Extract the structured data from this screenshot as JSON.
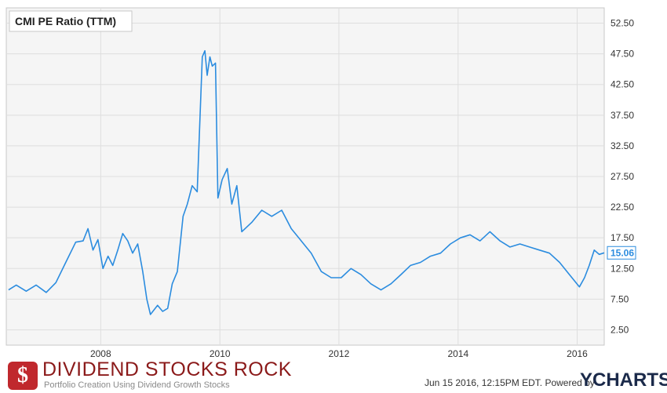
{
  "chart_data": {
    "type": "line",
    "title": "CMI PE Ratio (TTM)",
    "x_ticks": [
      "2008",
      "2010",
      "2012",
      "2014",
      "2016"
    ],
    "y_ticks": [
      "52.50",
      "47.50",
      "42.50",
      "37.50",
      "32.50",
      "27.50",
      "22.50",
      "17.50",
      "12.50",
      "7.50",
      "2.50"
    ],
    "ylim": [
      0,
      55
    ],
    "xlim": [
      "2006-06",
      "2016-06"
    ],
    "grid": true,
    "last_value_label": "15.06",
    "series": [
      {
        "color": "#2b8cdf",
        "points": [
          [
            "2006-06-15",
            9.0
          ],
          [
            "2006-08-01",
            9.8
          ],
          [
            "2006-10-01",
            8.8
          ],
          [
            "2006-12-01",
            9.8
          ],
          [
            "2007-02-01",
            8.6
          ],
          [
            "2007-04-01",
            10.2
          ],
          [
            "2007-06-01",
            13.5
          ],
          [
            "2007-08-01",
            16.8
          ],
          [
            "2007-09-15",
            17.0
          ],
          [
            "2007-10-15",
            19.0
          ],
          [
            "2007-11-15",
            15.5
          ],
          [
            "2007-12-15",
            17.2
          ],
          [
            "2008-01-15",
            12.5
          ],
          [
            "2008-02-15",
            14.5
          ],
          [
            "2008-03-15",
            13.0
          ],
          [
            "2008-04-15",
            15.5
          ],
          [
            "2008-05-15",
            18.2
          ],
          [
            "2008-06-15",
            17.0
          ],
          [
            "2008-07-15",
            15.0
          ],
          [
            "2008-08-15",
            16.5
          ],
          [
            "2008-09-15",
            12.0
          ],
          [
            "2008-10-10",
            7.5
          ],
          [
            "2008-11-01",
            5.0
          ],
          [
            "2008-12-15",
            6.5
          ],
          [
            "2009-01-15",
            5.5
          ],
          [
            "2009-02-15",
            6.0
          ],
          [
            "2009-03-15",
            10.0
          ],
          [
            "2009-04-15",
            12.0
          ],
          [
            "2009-05-20",
            21.0
          ],
          [
            "2009-06-15",
            23.0
          ],
          [
            "2009-07-15",
            26.0
          ],
          [
            "2009-08-15",
            25.0
          ],
          [
            "2009-09-15",
            47.0
          ],
          [
            "2009-10-01",
            48.0
          ],
          [
            "2009-10-15",
            44.0
          ],
          [
            "2009-11-01",
            47.0
          ],
          [
            "2009-11-15",
            45.5
          ],
          [
            "2009-12-05",
            46.0
          ],
          [
            "2009-12-20",
            24.0
          ],
          [
            "2010-01-15",
            27.0
          ],
          [
            "2010-02-15",
            28.8
          ],
          [
            "2010-03-15",
            23.0
          ],
          [
            "2010-04-15",
            26.0
          ],
          [
            "2010-05-15",
            18.5
          ],
          [
            "2010-07-15",
            20.0
          ],
          [
            "2010-09-15",
            22.0
          ],
          [
            "2010-11-15",
            21.0
          ],
          [
            "2011-01-15",
            22.0
          ],
          [
            "2011-03-15",
            19.0
          ],
          [
            "2011-05-15",
            17.0
          ],
          [
            "2011-07-15",
            15.0
          ],
          [
            "2011-09-15",
            12.0
          ],
          [
            "2011-11-15",
            11.0
          ],
          [
            "2012-01-15",
            11.0
          ],
          [
            "2012-03-15",
            12.5
          ],
          [
            "2012-05-15",
            11.5
          ],
          [
            "2012-07-15",
            10.0
          ],
          [
            "2012-09-15",
            9.0
          ],
          [
            "2012-11-15",
            10.0
          ],
          [
            "2013-01-15",
            11.5
          ],
          [
            "2013-03-15",
            13.0
          ],
          [
            "2013-05-15",
            13.5
          ],
          [
            "2013-07-15",
            14.5
          ],
          [
            "2013-09-15",
            15.0
          ],
          [
            "2013-11-15",
            16.5
          ],
          [
            "2014-01-15",
            17.5
          ],
          [
            "2014-03-15",
            18.0
          ],
          [
            "2014-05-15",
            17.0
          ],
          [
            "2014-07-15",
            18.5
          ],
          [
            "2014-09-15",
            17.0
          ],
          [
            "2014-11-15",
            16.0
          ],
          [
            "2015-01-15",
            16.5
          ],
          [
            "2015-03-15",
            16.0
          ],
          [
            "2015-05-15",
            15.5
          ],
          [
            "2015-07-15",
            15.0
          ],
          [
            "2015-09-15",
            13.5
          ],
          [
            "2015-11-15",
            11.5
          ],
          [
            "2016-01-15",
            9.5
          ],
          [
            "2016-02-15",
            11.0
          ],
          [
            "2016-03-15",
            13.0
          ],
          [
            "2016-04-15",
            15.5
          ],
          [
            "2016-05-15",
            14.8
          ],
          [
            "2016-06-15",
            15.06
          ]
        ]
      }
    ]
  },
  "footer": {
    "logo_symbol": "$",
    "brand_name": "DIVIDEND STOCKS ROCK",
    "brand_tagline": "Portfolio Creation Using Dividend Growth Stocks",
    "timestamp": "Jun 15 2016, 12:15PM EDT.",
    "powered_by": "Powered by",
    "ycharts": "YCHARTS"
  }
}
